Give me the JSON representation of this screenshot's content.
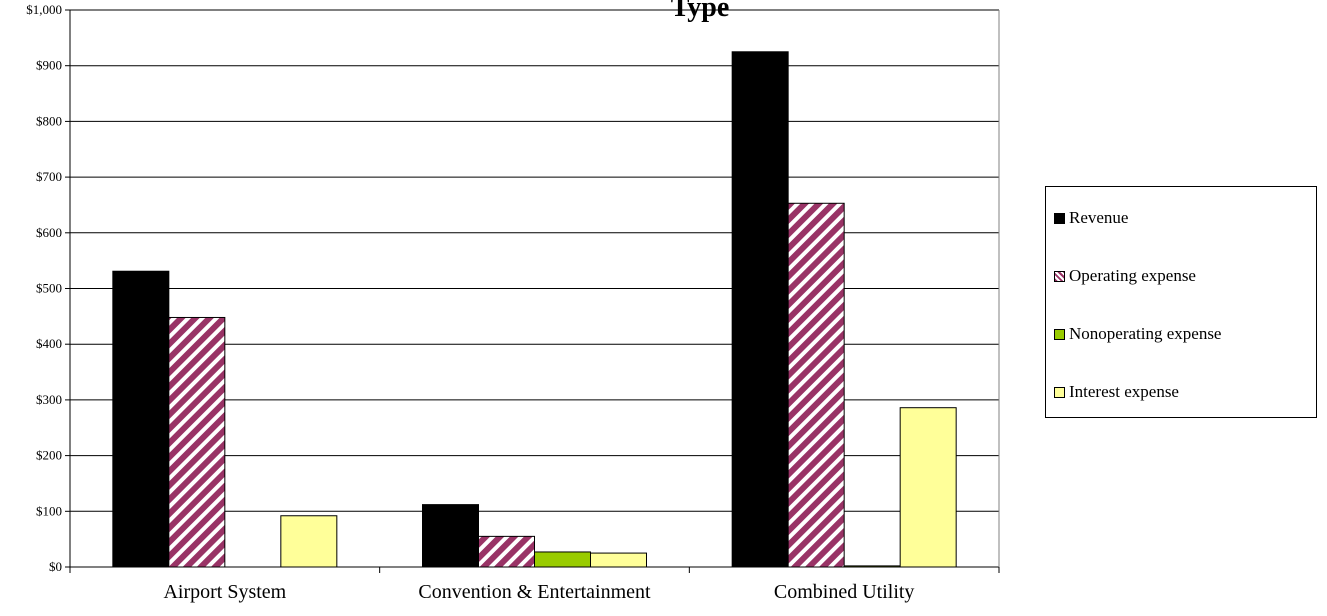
{
  "chart_data": {
    "type": "bar",
    "title": "Type",
    "categories": [
      "Airport System",
      "Convention & Entertainment",
      "Combined Utility"
    ],
    "series": [
      {
        "name": "Revenue",
        "color": "#000000",
        "pattern": "solid",
        "values": [
          531,
          112,
          925
        ]
      },
      {
        "name": "Operating expense",
        "color": "#993366",
        "pattern": "diagonal-stripes",
        "values": [
          448,
          55,
          653
        ]
      },
      {
        "name": "Nonoperating expense",
        "color": "#99cc00",
        "pattern": "solid",
        "values": [
          0,
          27,
          2
        ]
      },
      {
        "name": "Interest expense",
        "color": "#ffff99",
        "pattern": "solid",
        "values": [
          92,
          25,
          286
        ]
      }
    ],
    "yticks": [
      "$0",
      "$100",
      "$200",
      "$300",
      "$400",
      "$500",
      "$600",
      "$700",
      "$800",
      "$900",
      "$1,000"
    ],
    "ylim": [
      0,
      1000
    ],
    "grid": true,
    "legend_position": "right"
  }
}
